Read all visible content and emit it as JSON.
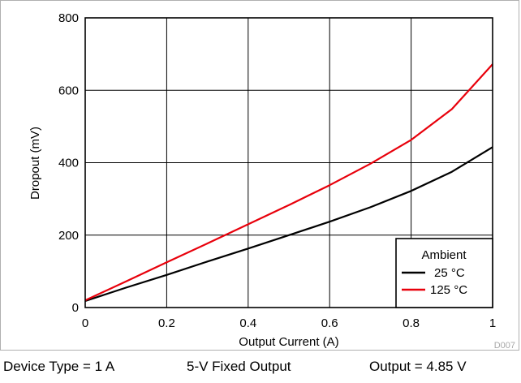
{
  "chart_data": {
    "type": "line",
    "xlabel": "Output Current (A)",
    "ylabel": "Dropout (mV)",
    "xlim": [
      0,
      1
    ],
    "ylim": [
      0,
      800
    ],
    "x_ticks": [
      0,
      0.2,
      0.4,
      0.6,
      0.8,
      1
    ],
    "x_tick_labels": [
      "0",
      "0.2",
      "0.4",
      "0.6",
      "0.8",
      "1"
    ],
    "y_ticks": [
      0,
      200,
      400,
      600,
      800
    ],
    "y_tick_labels": [
      "0",
      "200",
      "400",
      "600",
      "800"
    ],
    "grid": true,
    "legend": {
      "title": "Ambient",
      "placement": "bottom-right"
    },
    "series": [
      {
        "name": "25 °C",
        "color": "#000000",
        "x": [
          0,
          0.1,
          0.2,
          0.3,
          0.4,
          0.5,
          0.6,
          0.7,
          0.8,
          0.9,
          1.0
        ],
        "y": [
          18,
          55,
          90,
          127,
          163,
          200,
          237,
          277,
          322,
          375,
          443
        ]
      },
      {
        "name": "125 °C",
        "color": "#e8000b",
        "x": [
          0,
          0.1,
          0.2,
          0.3,
          0.4,
          0.5,
          0.6,
          0.7,
          0.8,
          0.9,
          1.0
        ],
        "y": [
          20,
          72,
          125,
          177,
          230,
          283,
          338,
          397,
          463,
          548,
          672
        ]
      }
    ],
    "code": "D007"
  },
  "caption": {
    "device_type": "Device Type = 1 A",
    "fixed_output": "5-V Fixed Output",
    "output": "Output = 4.85 V"
  }
}
